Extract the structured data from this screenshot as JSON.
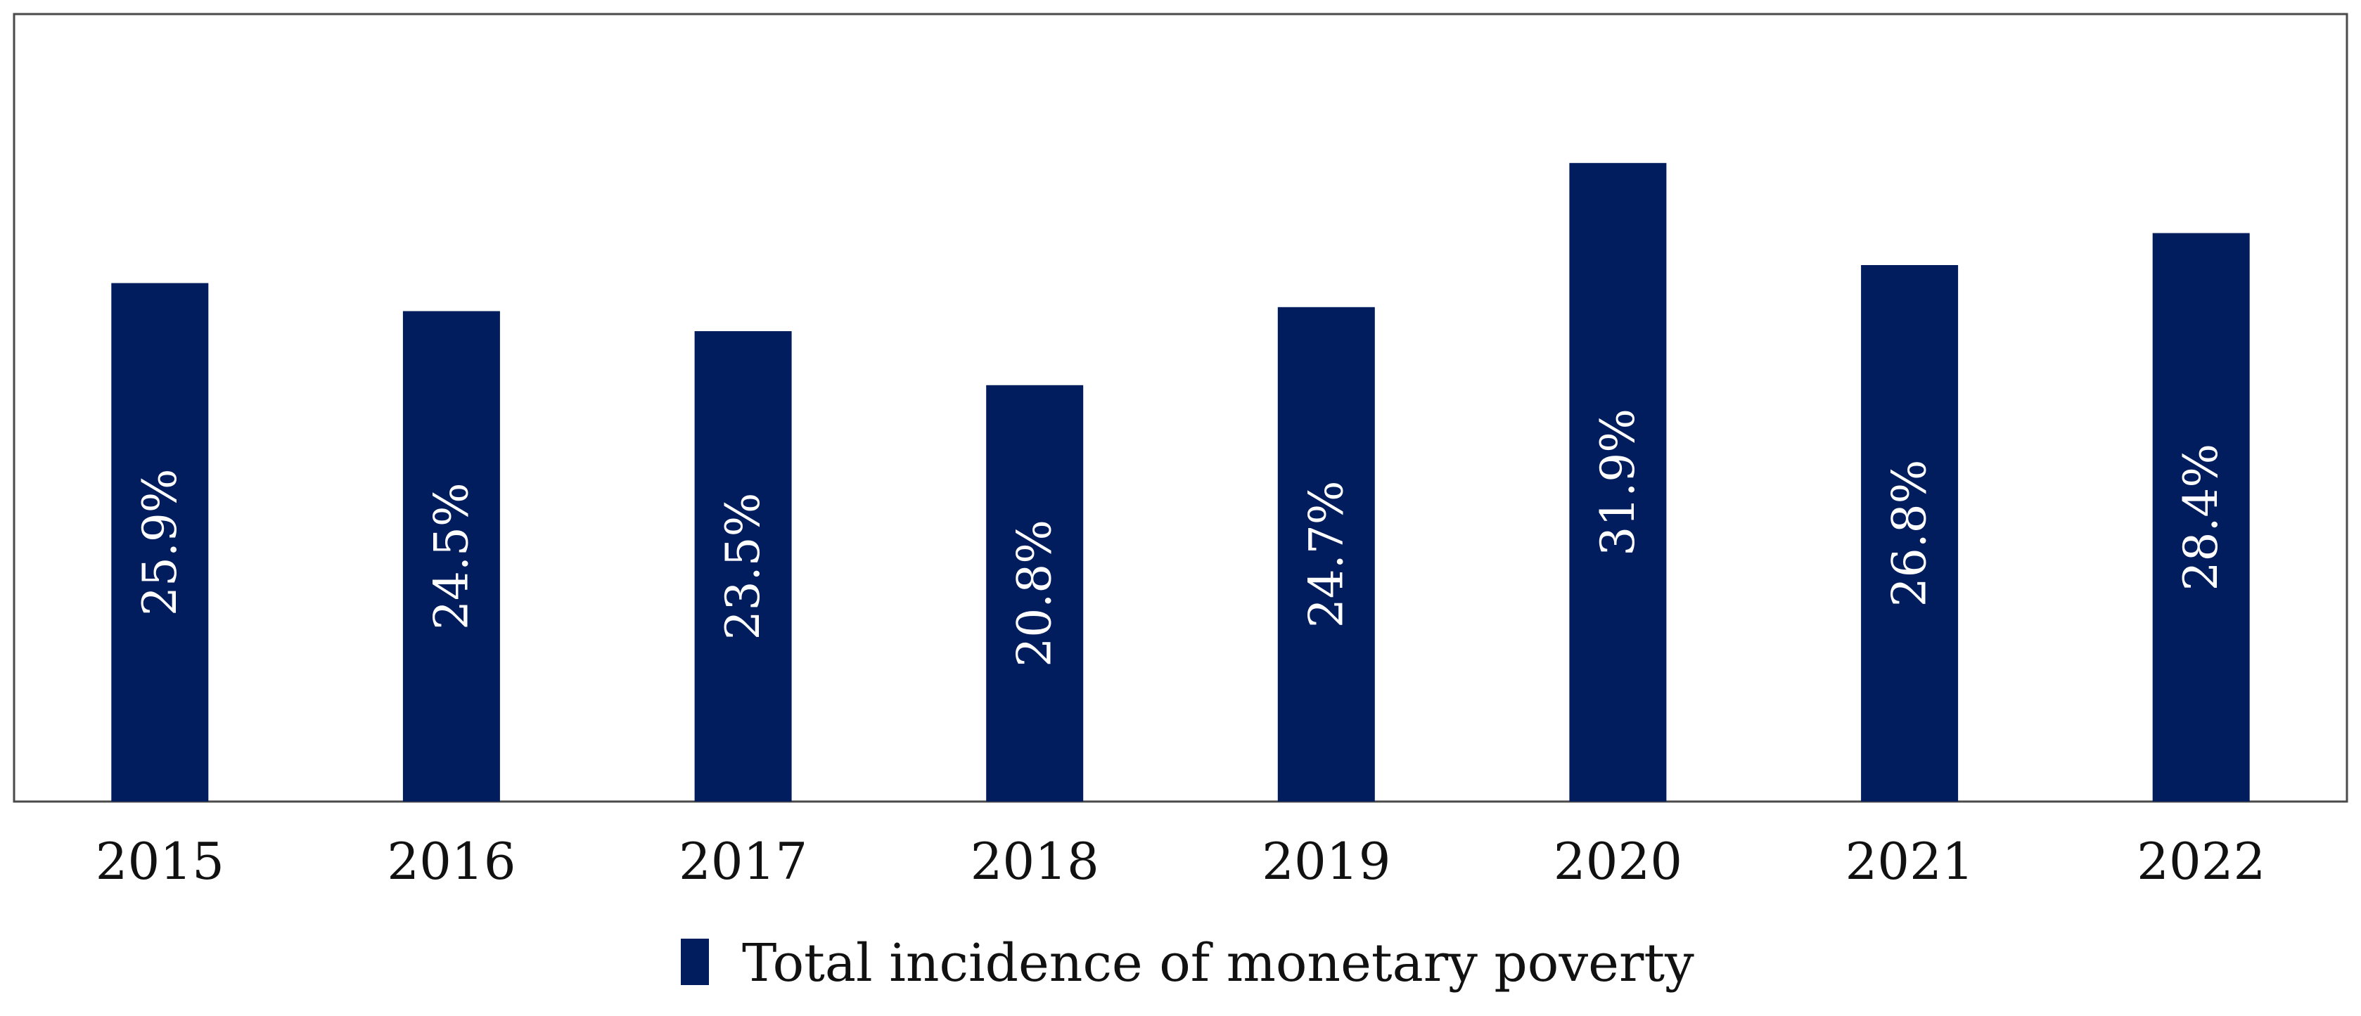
{
  "colors": {
    "bar": "#021D5E",
    "frame": "#4A4A4A",
    "bar_label": "#FFFFFF",
    "text": "#111111"
  },
  "chart_data": {
    "type": "bar",
    "title": "",
    "xlabel": "",
    "ylabel": "",
    "ylim": [
      0,
      36
    ],
    "grid": false,
    "legend_position": "bottom",
    "categories": [
      "2015",
      "2016",
      "2017",
      "2018",
      "2019",
      "2020",
      "2021",
      "2022"
    ],
    "series": [
      {
        "name": "Total incidence of monetary poverty",
        "values": [
          25.9,
          24.5,
          23.5,
          20.8,
          24.7,
          31.9,
          26.8,
          28.4
        ],
        "labels": [
          "25.9%",
          "24.5%",
          "23.5%",
          "20.8%",
          "24.7%",
          "31.9%",
          "26.8%",
          "28.4%"
        ]
      }
    ]
  }
}
